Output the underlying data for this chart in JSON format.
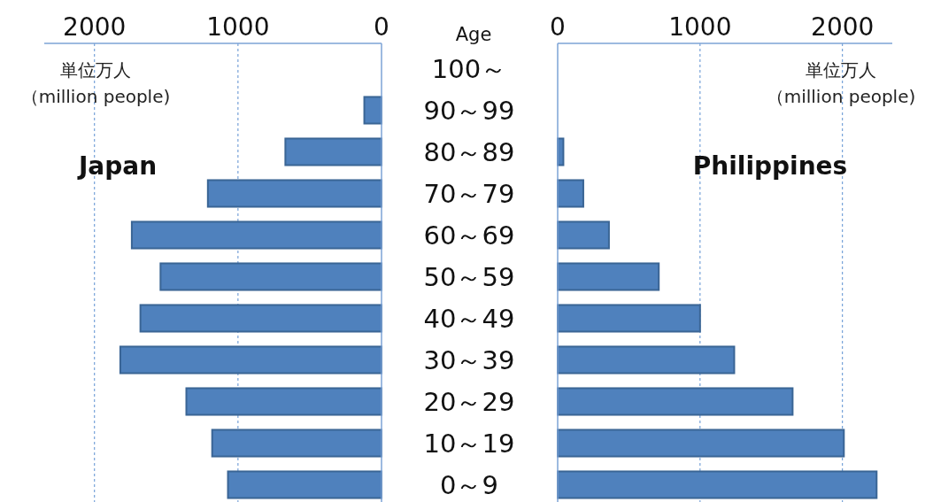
{
  "chart_data": [
    {
      "type": "bar",
      "orientation": "horizontal",
      "title": "Japan",
      "ylabel": "Age",
      "annotations": [
        "単位万人",
        "（million people)"
      ],
      "categories": [
        "100～",
        "90～99",
        "80～89",
        "70～79",
        "60～69",
        "50～59",
        "40～49",
        "30～39",
        "20～29",
        "10～19",
        "0～9"
      ],
      "values": [
        0,
        120,
        670,
        1210,
        1740,
        1540,
        1680,
        1820,
        1360,
        1180,
        1070
      ],
      "color": "#4f81bd",
      "xlim": [
        2350,
        0
      ],
      "xticks": [
        2000,
        1000,
        0
      ],
      "grid": "x"
    },
    {
      "type": "bar",
      "orientation": "horizontal",
      "title": "Philippines",
      "tick_labels": "x",
      "annotations": [
        "単位万人",
        "（million people)"
      ],
      "categories": [
        null,
        null,
        null,
        null,
        null,
        null,
        null,
        null,
        null,
        null,
        null
      ],
      "values": [
        0,
        0,
        40,
        180,
        360,
        710,
        1000,
        1240,
        1650,
        2010,
        2240
      ],
      "color": "#4f81bd",
      "xlim": [
        0,
        2350
      ],
      "xticks": [
        0,
        1000,
        2000
      ],
      "grid": "x"
    }
  ]
}
